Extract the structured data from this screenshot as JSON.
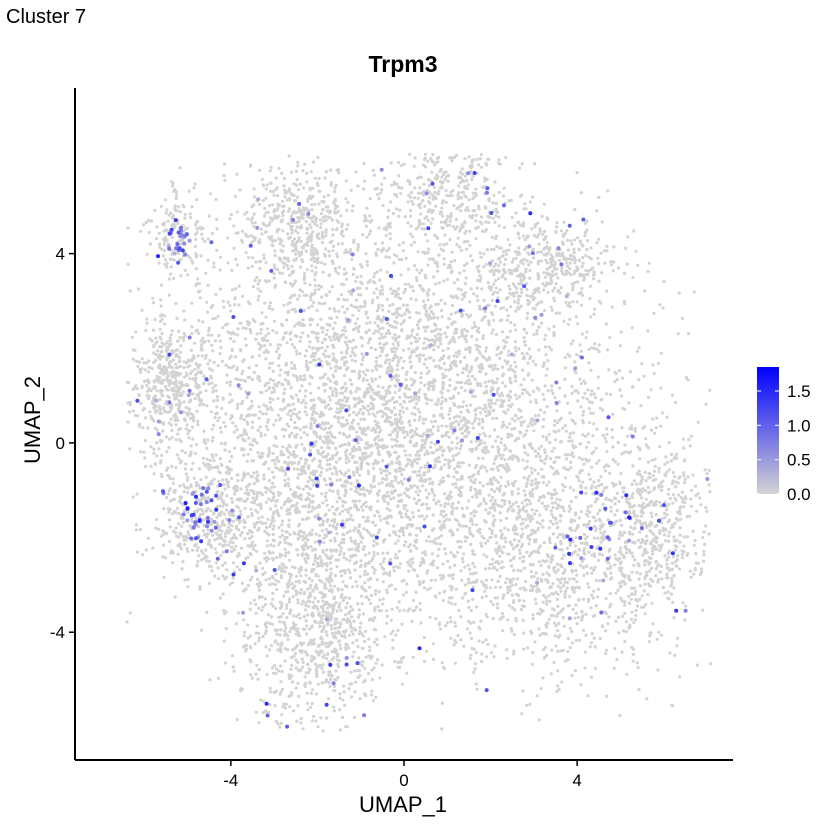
{
  "figure": {
    "tag": "Cluster 7"
  },
  "chart_data": {
    "type": "scatter",
    "title": "Trpm3",
    "xlabel": "UMAP_1",
    "ylabel": "UMAP_2",
    "xlim": [
      -7.6,
      7.6
    ],
    "ylim": [
      -6.7,
      7.5
    ],
    "x_ticks": [
      -4,
      0,
      4
    ],
    "y_ticks": [
      -4,
      0,
      4
    ],
    "grid": false,
    "background_point_color": "#d3d3d3",
    "expression_scale": {
      "low_color": "#d3d3d3",
      "high_color": "#0000ff",
      "range": [
        0,
        1.85
      ],
      "ticks": [
        0.0,
        0.5,
        1.0,
        1.5
      ],
      "tick_labels": [
        "0.0",
        "0.5",
        "1.0",
        "1.5"
      ],
      "legend_position": "right"
    },
    "cell_density_regions": [
      {
        "x": -0.5,
        "y": 1.5,
        "sx": 2.6,
        "sy": 1.9,
        "w": 0.3
      },
      {
        "x": 3.3,
        "y": -2.4,
        "sx": 1.6,
        "sy": 1.3,
        "w": 0.14
      },
      {
        "x": -2.0,
        "y": -3.8,
        "sx": 0.9,
        "sy": 1.3,
        "w": 0.1
      },
      {
        "x": -5.4,
        "y": 1.3,
        "sx": 0.5,
        "sy": 0.7,
        "w": 0.05
      },
      {
        "x": -4.5,
        "y": -1.6,
        "sx": 0.6,
        "sy": 0.6,
        "w": 0.05
      },
      {
        "x": 1.0,
        "y": 5.2,
        "sx": 0.7,
        "sy": 0.6,
        "w": 0.04
      },
      {
        "x": -2.4,
        "y": 4.7,
        "sx": 0.6,
        "sy": 0.6,
        "w": 0.04
      },
      {
        "x": 3.3,
        "y": 3.8,
        "sx": 0.8,
        "sy": 0.5,
        "w": 0.04
      },
      {
        "x": -5.2,
        "y": 4.4,
        "sx": 0.3,
        "sy": 0.4,
        "w": 0.02
      },
      {
        "x": 5.8,
        "y": -1.7,
        "sx": 0.6,
        "sy": 0.8,
        "w": 0.04
      },
      {
        "x": 1.5,
        "y": 0.3,
        "sx": 2.0,
        "sy": 1.5,
        "w": 0.08
      },
      {
        "x": -1.8,
        "y": -1.0,
        "sx": 1.5,
        "sy": 1.4,
        "w": 0.1
      }
    ],
    "expression_hotspots": [
      {
        "x": -5.2,
        "y": 4.2,
        "sx": 0.3,
        "sy": 0.4,
        "fraction": 0.45,
        "max": 1.0
      },
      {
        "x": -4.6,
        "y": -1.5,
        "sx": 0.5,
        "sy": 0.6,
        "fraction": 0.2,
        "max": 1.3
      },
      {
        "x": 4.3,
        "y": -1.8,
        "sx": 1.0,
        "sy": 0.9,
        "fraction": 0.07,
        "max": 1.4
      }
    ],
    "background_expression_fraction": 0.015
  }
}
